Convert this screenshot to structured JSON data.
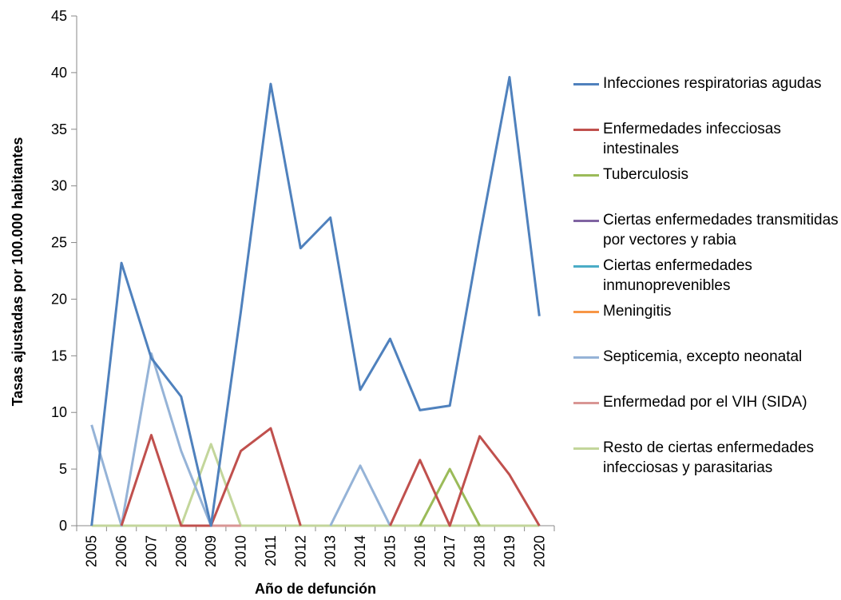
{
  "chart_data": {
    "type": "line",
    "y_label": "Tasas ajustadas por 100.000 habitantes",
    "x_label": "Año de defunción",
    "categories": [
      "2005",
      "2006",
      "2007",
      "2008",
      "2009",
      "2010",
      "2011",
      "2012",
      "2013",
      "2014",
      "2015",
      "2016",
      "2017",
      "2018",
      "2019",
      "2020"
    ],
    "ylim": [
      0,
      45
    ],
    "yticks": [
      0,
      5,
      10,
      15,
      20,
      25,
      30,
      35,
      40,
      45
    ],
    "grid": false,
    "legend": "right",
    "series": [
      {
        "name": "Resto de ciertas enfermedades infecciosas y parasitarias",
        "color": "#c3d69b",
        "values": [
          0,
          0,
          0,
          0,
          7.2,
          0,
          0,
          0,
          0,
          0,
          0,
          0,
          0,
          0,
          0,
          0
        ]
      },
      {
        "name": "Enfermedad por el VIH (SIDA)",
        "color": "#d99694",
        "values": [
          null,
          null,
          null,
          0,
          0,
          0,
          null,
          null,
          null,
          null,
          null,
          null,
          null,
          null,
          null,
          null
        ]
      },
      {
        "name": "Septicemia, excepto neonatal",
        "color": "#95b3d7",
        "values": [
          8.9,
          0,
          15.2,
          6.6,
          0,
          null,
          null,
          null,
          0,
          5.3,
          0,
          null,
          null,
          null,
          null,
          null
        ]
      },
      {
        "name": "Meningitis",
        "color": "#f79646",
        "values": [
          null,
          null,
          null,
          null,
          null,
          null,
          null,
          null,
          null,
          null,
          null,
          null,
          null,
          null,
          null,
          null
        ]
      },
      {
        "name": "Ciertas enfermedades inmunoprevenibles",
        "color": "#4bacc6",
        "values": [
          null,
          null,
          null,
          null,
          null,
          null,
          null,
          null,
          null,
          null,
          null,
          null,
          null,
          null,
          null,
          null
        ]
      },
      {
        "name": "Ciertas enfermedades transmitidas por vectores y rabia",
        "color": "#8064a2",
        "values": [
          null,
          null,
          null,
          null,
          null,
          null,
          null,
          null,
          null,
          null,
          null,
          null,
          null,
          null,
          null,
          null
        ]
      },
      {
        "name": "Tuberculosis",
        "color": "#9bbb59",
        "values": [
          null,
          null,
          null,
          null,
          null,
          null,
          null,
          null,
          null,
          null,
          null,
          0,
          5,
          0,
          null,
          null
        ]
      },
      {
        "name": "Enfermedades infecciosas intestinales",
        "color": "#c0504d",
        "values": [
          null,
          0,
          8,
          0,
          0,
          6.6,
          8.6,
          0,
          null,
          null,
          0,
          5.8,
          0,
          7.9,
          4.5,
          0
        ]
      },
      {
        "name": "Infecciones respiratorias agudas",
        "color": "#4f81bd",
        "values": [
          0,
          23.2,
          14.8,
          11.4,
          0,
          18.9,
          39,
          24.5,
          27.2,
          12,
          16.5,
          10.2,
          10.6,
          25.5,
          39.6,
          18.5
        ]
      }
    ]
  }
}
